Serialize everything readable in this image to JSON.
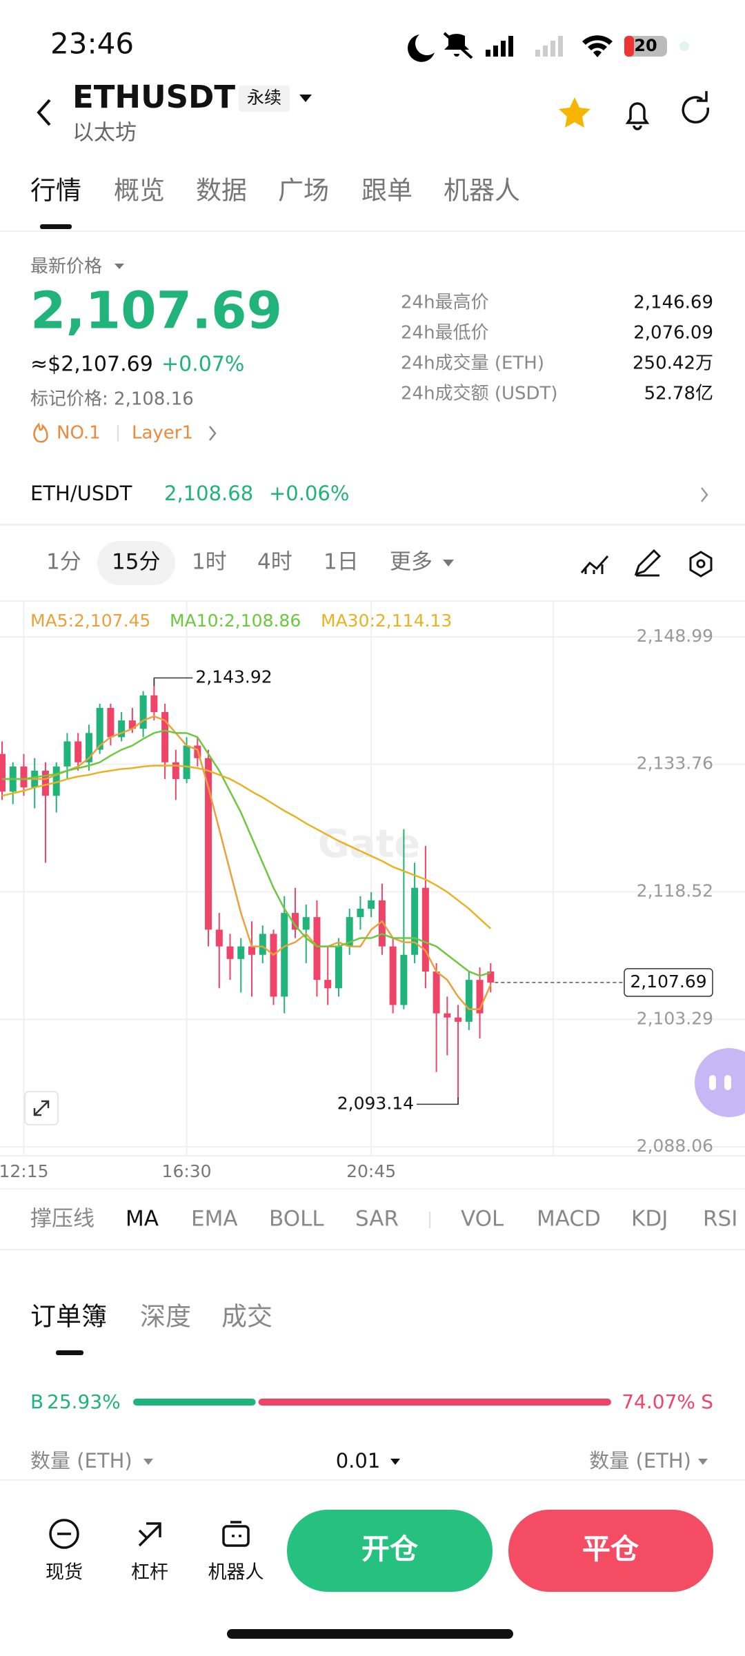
{
  "status_bar": {
    "time": "23:46",
    "battery": "20"
  },
  "header": {
    "symbol": "ETHUSDT",
    "contract": "永续",
    "name": "以太坊"
  },
  "tabs": [
    "行情",
    "概览",
    "数据",
    "广场",
    "跟单",
    "机器人"
  ],
  "price": {
    "label": "最新价格",
    "last": "2,107.69",
    "usd": "≈$2,107.69",
    "change": "+0.07%",
    "mark": "标记价格: 2,108.16"
  },
  "tags": [
    "NO.1",
    "Layer1"
  ],
  "stats": [
    [
      "24h最高价",
      "2,146.69"
    ],
    [
      "24h最低价",
      "2,076.09"
    ],
    [
      "24h成交量 (ETH)",
      "250.42万"
    ],
    [
      "24h成交额 (USDT)",
      "52.78亿"
    ]
  ],
  "spot": {
    "pair": "ETH/USDT",
    "price": "2,108.68",
    "change": "+0.06%"
  },
  "intervals": [
    "1分",
    "15分",
    "1时",
    "4时",
    "1日",
    "更多"
  ],
  "chart_data": {
    "type": "candlestick",
    "watermark": "Gate",
    "categories": [
      null,
      null,
      "12:15",
      null,
      null,
      null,
      null,
      null,
      null,
      null,
      null,
      null,
      null,
      null,
      null,
      null,
      null,
      "16:30",
      null,
      null,
      null,
      null,
      null,
      null,
      null,
      null,
      null,
      null,
      null,
      null,
      null,
      null,
      null,
      null,
      "20:45",
      null,
      null,
      null,
      null,
      null,
      null,
      null,
      null,
      null,
      null,
      null
    ],
    "open": [
      2135.0,
      2130.5,
      2133.5,
      2131.0,
      2133.0,
      2130.0,
      2133.5,
      2136.5,
      2134.0,
      2135.5,
      2140.5,
      2137.0,
      2139.0,
      2138.0,
      2142.0,
      2140.0,
      2134.0,
      2132.0,
      2136.0,
      2134.5,
      2114.0,
      2112.0,
      2110.5,
      2112.0,
      2111.0,
      2113.5,
      2106.0,
      2116.0,
      2114.0,
      2115.5,
      2108.0,
      2107.0,
      2112.0,
      2115.5,
      2116.5,
      2117.5,
      2112.0,
      2105.0,
      2111.0,
      2119.0,
      2109.0,
      2104.0,
      2103.5,
      2103.0,
      2108.0,
      2109.0
    ],
    "high": [
      2136.5,
      2134.0,
      2135.0,
      2134.5,
      2134.0,
      2134.0,
      2137.5,
      2137.5,
      2138.5,
      2141.0,
      2141.0,
      2140.0,
      2140.5,
      2142.5,
      2143.92,
      2141.0,
      2135.5,
      2137.0,
      2137.0,
      2135.5,
      2116.0,
      2113.5,
      2113.0,
      2115.0,
      2114.5,
      2114.0,
      2118.0,
      2119.0,
      2117.0,
      2117.5,
      2112.0,
      2113.0,
      2116.5,
      2118.0,
      2118.5,
      2119.5,
      2113.0,
      2126.0,
      2122.0,
      2124.0,
      2110.0,
      2106.0,
      2105.0,
      2109.0,
      2109.5,
      2110.0
    ],
    "low": [
      2129.5,
      2129.0,
      2130.0,
      2128.5,
      2122.0,
      2128.0,
      2132.0,
      2133.0,
      2133.0,
      2135.0,
      2136.0,
      2136.5,
      2137.5,
      2137.0,
      2139.0,
      2132.0,
      2129.5,
      2131.5,
      2133.5,
      2112.0,
      2107.0,
      2108.0,
      2106.5,
      2106.0,
      2110.0,
      2105.0,
      2104.0,
      2113.0,
      2110.0,
      2106.0,
      2105.0,
      2106.0,
      2111.0,
      2114.0,
      2115.5,
      2111.0,
      2104.0,
      2104.5,
      2110.0,
      2107.0,
      2097.0,
      2099.0,
      2093.14,
      2102.0,
      2101.0,
      2106.5
    ],
    "close": [
      2130.5,
      2133.5,
      2131.0,
      2133.0,
      2130.0,
      2133.5,
      2136.5,
      2134.0,
      2137.5,
      2140.5,
      2137.0,
      2139.0,
      2138.0,
      2142.0,
      2140.0,
      2134.0,
      2132.0,
      2136.0,
      2134.5,
      2114.0,
      2112.0,
      2110.5,
      2112.0,
      2111.0,
      2113.5,
      2106.0,
      2116.0,
      2114.0,
      2115.5,
      2108.0,
      2107.0,
      2112.0,
      2115.5,
      2116.5,
      2117.5,
      2112.0,
      2105.0,
      2111.0,
      2119.0,
      2109.0,
      2104.0,
      2103.5,
      2103.0,
      2108.0,
      2104.0,
      2107.69
    ],
    "up_color": "#20b37a",
    "down_color": "#ef4467",
    "series": [
      {
        "name": "MA5:2,107.45",
        "color": "#e9a23b",
        "values": [
          2132,
          2132,
          2132,
          2132,
          2132,
          2132.5,
          2133,
          2133.5,
          2134.5,
          2136,
          2137,
          2137.5,
          2138,
          2139,
          2139.5,
          2139,
          2137.5,
          2136,
          2135.5,
          2131,
          2126,
          2121,
          2116,
          2112,
          2112,
          2111,
          2112,
          2112.5,
          2113.5,
          2112,
          2112,
          2112.5,
          2112,
          2112,
          2114,
          2115,
          2113,
          2112.5,
          2112.5,
          2111.5,
          2109,
          2108,
          2106,
          2104.5,
          2104.5,
          2107.45
        ]
      },
      {
        "name": "MA10:2,108.86",
        "color": "#6cc83c",
        "values": [
          2132,
          2132,
          2132,
          2132.2,
          2132.4,
          2132.6,
          2133,
          2133.3,
          2133.6,
          2134,
          2134.8,
          2135.5,
          2136,
          2136.8,
          2137.5,
          2137.8,
          2137.5,
          2137.5,
          2137,
          2135,
          2133,
          2130.5,
          2128,
          2125,
          2122,
          2119,
          2116.5,
          2114.5,
          2113,
          2112,
          2112,
          2112,
          2112.5,
          2113,
          2113,
          2113.5,
          2113,
          2113,
          2113,
          2112.5,
          2112,
          2111,
          2110,
          2109,
          2108.5,
          2108.86
        ]
      },
      {
        "name": "MA30:2,114.13",
        "color": "#e8b321",
        "values": [
          2130,
          2130.3,
          2130.6,
          2131,
          2131.3,
          2131.6,
          2132,
          2132.3,
          2132.5,
          2132.8,
          2133,
          2133.2,
          2133.3,
          2133.5,
          2133.6,
          2133.6,
          2133.6,
          2133.5,
          2133.3,
          2133,
          2132.5,
          2132,
          2131.3,
          2130.5,
          2129.8,
          2129,
          2128.2,
          2127.5,
          2126.7,
          2126,
          2125.3,
          2124.6,
          2124,
          2123.4,
          2122.8,
          2122.2,
          2121.5,
          2121,
          2120.5,
          2120,
          2119.3,
          2118.5,
          2117.5,
          2116.5,
          2115.3,
          2114.13
        ]
      }
    ],
    "ylim": [
      2086.99,
      2153.19
    ],
    "yticks": [
      {
        "value": 2148.99,
        "label": "2,148.99"
      },
      {
        "value": 2133.76,
        "label": "2,133.76"
      },
      {
        "value": 2118.52,
        "label": "2,118.52"
      },
      {
        "value": 2103.29,
        "label": "2,103.29"
      },
      {
        "value": 2088.06,
        "label": "2,088.06"
      }
    ],
    "grid": true,
    "current_price": {
      "value": 2107.69,
      "label": "2,107.69"
    },
    "high_marker": {
      "value": 2143.92,
      "label": "2,143.92"
    },
    "low_marker": {
      "value": 2093.14,
      "label": "2,093.14"
    }
  },
  "indicators": [
    "撑压线",
    "MA",
    "EMA",
    "BOLL",
    "SAR",
    "VOL",
    "MACD",
    "KDJ",
    "RSI"
  ],
  "orderbook": {
    "tabs": [
      "订单簿",
      "深度",
      "成交"
    ],
    "buy_side": "B",
    "buy_pct": {
      "value": 25.93,
      "label": "25.93%"
    },
    "sell_pct": {
      "value": 74.07,
      "label": "74.07%"
    },
    "sell_side": "S",
    "qty_left": "数量 (ETH)",
    "precision": "0.01",
    "qty_right": "数量 (ETH)"
  },
  "nav": [
    "现货",
    "杠杆",
    "机器人"
  ],
  "buttons": [
    "开仓",
    "平仓"
  ]
}
